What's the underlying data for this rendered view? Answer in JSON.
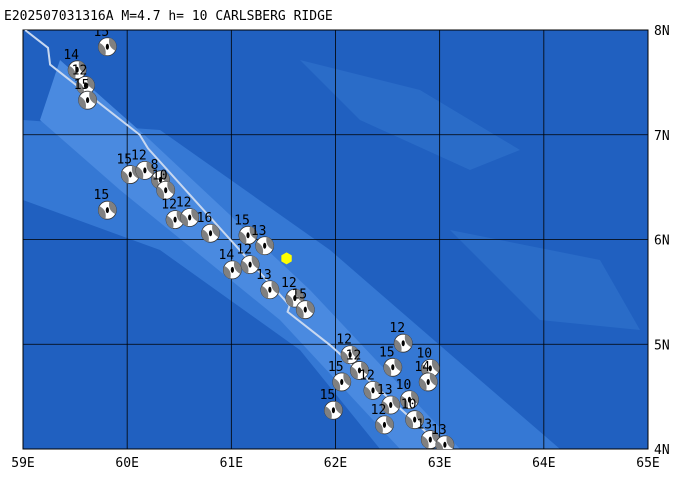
{
  "chart_data": {
    "type": "map",
    "title": "E202507031316A M=4.7 h= 10 CARLSBERG RIDGE",
    "xlim": [
      59,
      65
    ],
    "ylim": [
      4,
      8
    ],
    "xticks": [
      {
        "value": 59,
        "label": "59E"
      },
      {
        "value": 60,
        "label": "60E"
      },
      {
        "value": 61,
        "label": "61E"
      },
      {
        "value": 62,
        "label": "62E"
      },
      {
        "value": 63,
        "label": "63E"
      },
      {
        "value": 64,
        "label": "64E"
      },
      {
        "value": 65,
        "label": "65E"
      }
    ],
    "yticks": [
      {
        "value": 4,
        "label": "4N"
      },
      {
        "value": 5,
        "label": "5N"
      },
      {
        "value": 6,
        "label": "6N"
      },
      {
        "value": 7,
        "label": "7N"
      },
      {
        "value": 8,
        "label": "8N"
      }
    ],
    "grid": true,
    "plate_boundary": {
      "color": "#c8d8f0",
      "lon": [
        59.02,
        59.24,
        59.26,
        60.12,
        60.2,
        61.56,
        61.54,
        61.95,
        63.05
      ],
      "lat": [
        8.0,
        7.83,
        7.67,
        7.0,
        6.87,
        5.37,
        5.31,
        4.99,
        4.0
      ]
    },
    "epicenter": {
      "lon": 61.53,
      "lat": 5.82,
      "color": "#ffff00"
    },
    "events": {
      "lon": [
        59.81,
        59.52,
        59.6,
        59.62,
        60.03,
        60.17,
        60.32,
        60.37,
        59.81,
        60.46,
        60.6,
        60.8,
        61.16,
        61.32,
        61.01,
        61.18,
        61.37,
        61.61,
        61.71,
        62.65,
        62.14,
        62.23,
        62.55,
        62.91,
        62.06,
        62.89,
        61.98,
        62.36,
        62.53,
        62.71,
        62.47,
        62.76,
        62.91,
        63.05
      ],
      "lat": [
        7.84,
        7.62,
        7.47,
        7.33,
        6.62,
        6.66,
        6.57,
        6.47,
        6.28,
        6.19,
        6.21,
        6.06,
        6.04,
        5.94,
        5.71,
        5.76,
        5.52,
        5.44,
        5.33,
        5.01,
        4.9,
        4.75,
        4.78,
        4.77,
        4.64,
        4.64,
        4.37,
        4.56,
        4.42,
        4.47,
        4.23,
        4.28,
        4.09,
        4.04
      ],
      "labels": [
        "15",
        "14",
        "12",
        "15",
        "15",
        "12",
        "8",
        "10",
        "15",
        "12",
        "12",
        "16",
        "15",
        "13",
        "14",
        "12",
        "13",
        "12",
        "15",
        "12",
        "12",
        "12",
        "15",
        "10",
        "15",
        "14",
        "15",
        "12",
        "13",
        "10",
        "12",
        "10",
        "13",
        "13"
      ]
    }
  }
}
